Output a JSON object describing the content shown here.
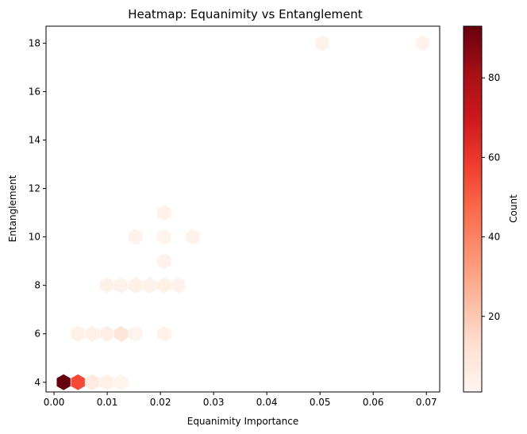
{
  "chart_data": {
    "type": "heatmap",
    "subtype": "hexbin",
    "title": "Heatmap: Equanimity vs Entanglement",
    "xlabel": "Equanimity Importance",
    "ylabel": "Entanglement",
    "xlim": [
      -0.0015,
      0.0725
    ],
    "ylim": [
      3.6,
      18.7
    ],
    "xticks": [
      0.0,
      0.01,
      0.02,
      0.03,
      0.04,
      0.05,
      0.06,
      0.07
    ],
    "xtick_labels": [
      "0.00",
      "0.01",
      "0.02",
      "0.03",
      "0.04",
      "0.05",
      "0.06",
      "0.07"
    ],
    "yticks": [
      4,
      6,
      8,
      10,
      12,
      14,
      16,
      18
    ],
    "ytick_labels": [
      "4",
      "6",
      "8",
      "10",
      "12",
      "14",
      "16",
      "18"
    ],
    "colormap": "Reds",
    "colorbar": {
      "label": "Count",
      "range": [
        1,
        93
      ],
      "ticks": [
        20,
        40,
        60,
        80
      ],
      "tick_labels": [
        "20",
        "40",
        "60",
        "80"
      ]
    },
    "bins": [
      {
        "x": 0.0018,
        "y": 4,
        "count": 93
      },
      {
        "x": 0.0045,
        "y": 4,
        "count": 55
      },
      {
        "x": 0.0072,
        "y": 4,
        "count": 7
      },
      {
        "x": 0.0099,
        "y": 4,
        "count": 4
      },
      {
        "x": 0.0126,
        "y": 4,
        "count": 2
      },
      {
        "x": 0.0045,
        "y": 6,
        "count": 4
      },
      {
        "x": 0.0072,
        "y": 6,
        "count": 4
      },
      {
        "x": 0.0099,
        "y": 6,
        "count": 5
      },
      {
        "x": 0.0126,
        "y": 6,
        "count": 10
      },
      {
        "x": 0.0153,
        "y": 6,
        "count": 2
      },
      {
        "x": 0.0207,
        "y": 6,
        "count": 3
      },
      {
        "x": 0.0099,
        "y": 8,
        "count": 4
      },
      {
        "x": 0.0126,
        "y": 8,
        "count": 3
      },
      {
        "x": 0.0153,
        "y": 8,
        "count": 4
      },
      {
        "x": 0.018,
        "y": 8,
        "count": 3
      },
      {
        "x": 0.0207,
        "y": 8,
        "count": 4
      },
      {
        "x": 0.0234,
        "y": 8,
        "count": 3
      },
      {
        "x": 0.0207,
        "y": 9,
        "count": 3
      },
      {
        "x": 0.0153,
        "y": 10,
        "count": 3
      },
      {
        "x": 0.0207,
        "y": 10,
        "count": 2
      },
      {
        "x": 0.0261,
        "y": 10,
        "count": 3
      },
      {
        "x": 0.0207,
        "y": 11,
        "count": 3
      },
      {
        "x": 0.0504,
        "y": 18,
        "count": 3
      },
      {
        "x": 0.0693,
        "y": 18,
        "count": 3
      }
    ]
  }
}
